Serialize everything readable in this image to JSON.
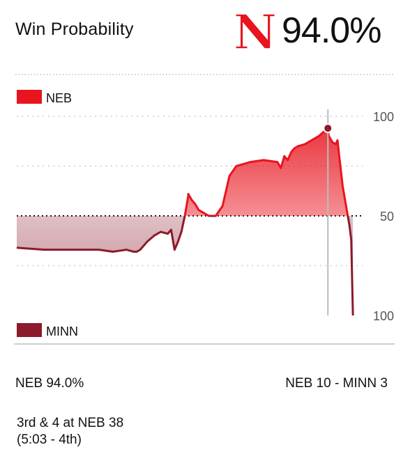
{
  "header": {
    "title": "Win Probability",
    "logo_letter": "N",
    "team_probability": "94.0%"
  },
  "colors": {
    "neb": "#e8141e",
    "minn": "#8b1a2c",
    "gridline": "#bdbdbd",
    "axis_text": "#555555"
  },
  "chart_data": {
    "type": "area",
    "title": "",
    "xlabel": "",
    "ylabel": "",
    "ylim": [
      0,
      100
    ],
    "y_ticks": [
      "100",
      "50",
      "100"
    ],
    "y_tick_values": [
      100,
      50,
      0
    ],
    "legend": [
      "NEB",
      "MINN"
    ],
    "legend_placement": "top-left / bottom-left",
    "baseline": 50,
    "grid": true,
    "marker": {
      "x": 0.907,
      "y": 94,
      "label": "94.0%"
    },
    "series": [
      {
        "name": "NEB",
        "x": [
          0,
          0.08,
          0.16,
          0.24,
          0.28,
          0.3,
          0.32,
          0.34,
          0.35,
          0.36,
          0.38,
          0.4,
          0.42,
          0.44,
          0.45,
          0.46,
          0.47,
          0.48,
          0.49,
          0.5,
          0.5,
          0.51,
          0.52,
          0.53,
          0.56,
          0.58,
          0.6,
          0.62,
          0.64,
          0.66,
          0.68,
          0.72,
          0.76,
          0.77,
          0.78,
          0.79,
          0.8,
          0.81,
          0.82,
          0.84,
          0.86,
          0.88,
          0.9,
          0.905,
          0.91,
          0.92,
          0.93,
          0.935,
          0.94,
          0.95,
          0.96,
          0.97,
          0.975,
          0.98
        ],
        "values": [
          34,
          33,
          33,
          33,
          32,
          32.5,
          33,
          32,
          32,
          33,
          37,
          40,
          42,
          41,
          43,
          33,
          37,
          42,
          50,
          60,
          61,
          58,
          56,
          53,
          50,
          50,
          55,
          70,
          75,
          76,
          77,
          78,
          77,
          74,
          80,
          78,
          82,
          84,
          85,
          86,
          88,
          90,
          93,
          94,
          90,
          87,
          86,
          88,
          80,
          65,
          55,
          45,
          38,
          0
        ]
      }
    ]
  },
  "footer": {
    "current_prob": "NEB 94.0%",
    "score": "NEB 10 - MINN 3"
  },
  "situation": {
    "line1": "3rd & 4 at NEB 38",
    "line2": "(5:03 - 4th)"
  }
}
